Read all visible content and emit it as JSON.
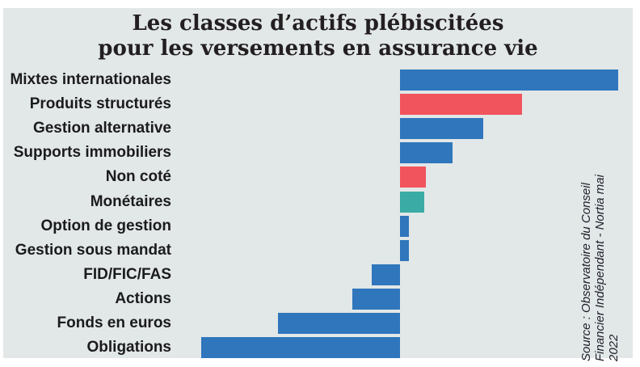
{
  "title": {
    "line1": "Les classes d’actifs plébiscitées",
    "line2": "pour les versements en assurance vie"
  },
  "source": {
    "line1": "Source : Observatoire du Conseil",
    "line2": "Financier Indépendant - Nortia mai",
    "line3": "2022"
  },
  "colors": {
    "page_background": "#ffffff",
    "panel_background": "#e2e7e8",
    "blue": "#2f76bc",
    "red": "#f1545c",
    "teal": "#3aaba5",
    "title_text": "#231f20",
    "label_text": "#1b1b1b"
  },
  "chart_data": {
    "type": "bar",
    "orientation": "horizontal-diverging",
    "title": "Les classes d’actifs plébiscitées pour les versements en assurance vie",
    "categories": [
      "Mixtes internationales",
      "Produits structurés",
      "Gestion alternative",
      "Supports immobiliers",
      "Non coté",
      "Monétaires",
      "Option de gestion",
      "Gestion sous mandat",
      "FID/FIC/FAS",
      "Actions",
      "Fonds en euros",
      "Obligations"
    ],
    "values": [
      100,
      56,
      38,
      24,
      12,
      11,
      4,
      4,
      -13,
      -22,
      -56,
      -91
    ],
    "bar_colors": [
      "blue",
      "red",
      "blue",
      "blue",
      "red",
      "teal",
      "blue",
      "blue",
      "blue",
      "blue",
      "blue",
      "blue"
    ],
    "value_note": "no numeric axis shown in image; values estimated relative to longest bar = 100",
    "xlabel": "",
    "ylabel": "",
    "xlim": [
      -100,
      106
    ],
    "grid": false,
    "legend": false,
    "axis_tick_labels": false
  }
}
